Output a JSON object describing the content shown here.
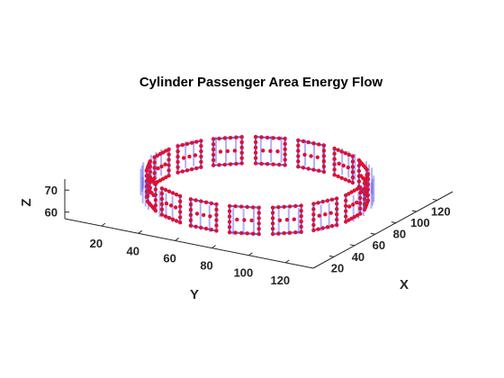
{
  "chart_data": {
    "type": "scatter",
    "title": "Cylinder Passenger Area Energy Flow",
    "xlabel": "X",
    "ylabel": "Y",
    "zlabel": "Z",
    "view": "3d",
    "xlim": [
      0,
      135
    ],
    "ylim": [
      0,
      135
    ],
    "zlim": [
      57,
      75
    ],
    "xticks": [
      20,
      40,
      60,
      80,
      100,
      120
    ],
    "yticks": [
      20,
      40,
      60,
      80,
      100,
      120
    ],
    "zticks": [
      60,
      70
    ],
    "grid": false,
    "legend": "none",
    "ring": {
      "center_x": 67,
      "center_y": 67,
      "radius": 52,
      "panel_count": 16,
      "z_min": 60,
      "z_max": 72
    },
    "series": [
      {
        "role": "flow-vectors",
        "color": "#5050ee"
      },
      {
        "role": "sample-points",
        "color": "#dd1133"
      }
    ]
  }
}
